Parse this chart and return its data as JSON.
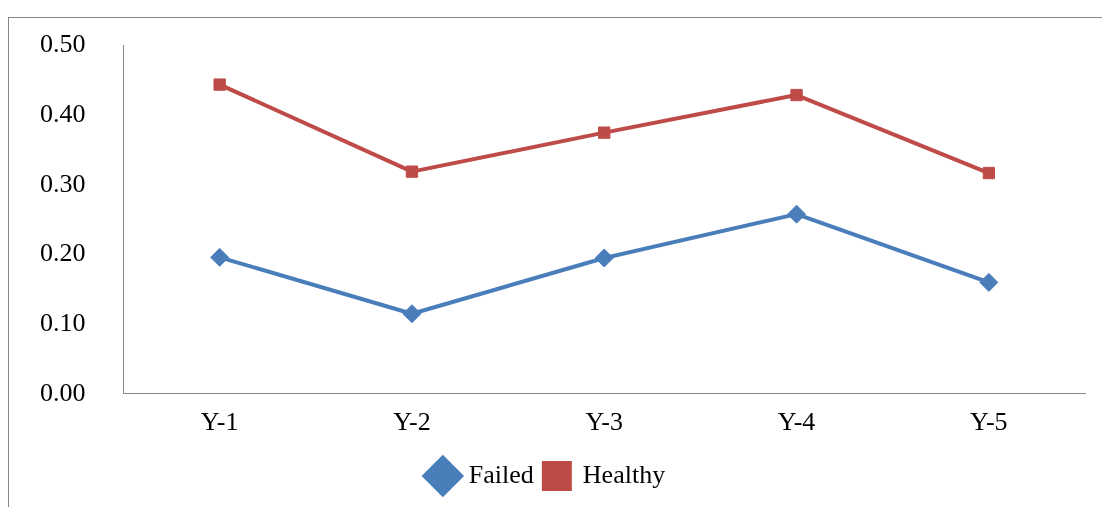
{
  "chart_data": {
    "type": "line",
    "categories": [
      "Y-1",
      "Y-2",
      "Y-3",
      "Y-4",
      "Y-5"
    ],
    "series": [
      {
        "name": "Failed",
        "color": "#4a7ebb",
        "values": [
          0.196,
          0.115,
          0.195,
          0.258,
          0.16
        ],
        "marker": "diamond"
      },
      {
        "name": "Healthy",
        "color": "#be4b48",
        "values": [
          0.444,
          0.319,
          0.375,
          0.429,
          0.317
        ],
        "marker": "square"
      }
    ],
    "ylim": [
      0,
      0.5
    ],
    "yticks": [
      {
        "value": 0,
        "label": "0.00"
      },
      {
        "value": 0.1,
        "label": "0.10"
      },
      {
        "value": 0.2,
        "label": "0.20"
      },
      {
        "value": 0.3,
        "label": "0.30"
      },
      {
        "value": 0.4,
        "label": "0.40"
      },
      {
        "value": 0.5,
        "label": "0.50"
      }
    ],
    "grid": false,
    "legend": "bottom",
    "line_style": "solid"
  }
}
